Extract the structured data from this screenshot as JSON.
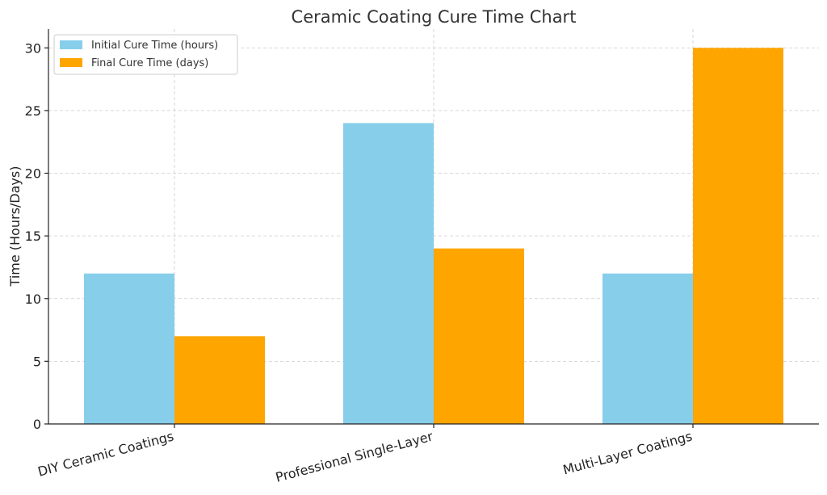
{
  "chart_data": {
    "type": "bar",
    "title": "Ceramic Coating Cure Time Chart",
    "xlabel": "",
    "ylabel": "Time (Hours/Days)",
    "categories": [
      "DIY Ceramic Coatings",
      "Professional Single-Layer",
      "Multi-Layer Coatings"
    ],
    "series": [
      {
        "name": "Initial Cure Time (hours)",
        "values": [
          12,
          24,
          12
        ],
        "color": "#87CEEB"
      },
      {
        "name": "Final Cure Time (days)",
        "values": [
          7,
          14,
          30
        ],
        "color": "#FFA500"
      }
    ],
    "yticks": [
      0,
      5,
      10,
      15,
      20,
      25,
      30
    ],
    "ylim": [
      0,
      31.5
    ],
    "grid": true,
    "legend_position": "top-left"
  }
}
